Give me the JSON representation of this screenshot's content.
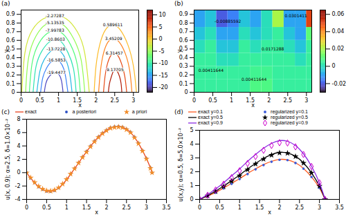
{
  "chart_data": [
    {
      "panel": "(a)",
      "type": "contour",
      "x_label": "x",
      "y_label": "y",
      "xlim": [
        0,
        3.14159
      ],
      "xticks": [
        0,
        0.5,
        1,
        1.5,
        2,
        2.5,
        3
      ],
      "ylim": [
        0,
        0.95
      ],
      "yticks": [
        0,
        0.1,
        0.2,
        0.3,
        0.4,
        0.5,
        0.6,
        0.7,
        0.8,
        0.9
      ],
      "colorbar_range": [
        -22,
        12
      ],
      "colorbar_ticks": [
        -20,
        -15,
        -10,
        -5,
        0,
        5,
        10
      ],
      "data_labels": true,
      "contours": [
        {
          "level": -2.27287,
          "x": [
            0.02,
            0.1,
            0.3,
            0.6,
            0.9,
            1.2,
            1.5,
            1.7,
            1.82
          ],
          "y": [
            0,
            0.45,
            0.72,
            0.85,
            0.88,
            0.85,
            0.7,
            0.45,
            0
          ]
        },
        {
          "level": -5.13535,
          "x": [
            0.12,
            0.2,
            0.4,
            0.65,
            0.9,
            1.15,
            1.4,
            1.6,
            1.7
          ],
          "y": [
            0,
            0.4,
            0.65,
            0.78,
            0.8,
            0.77,
            0.62,
            0.38,
            0
          ]
        },
        {
          "level": -7.99783,
          "x": [
            0.22,
            0.3,
            0.48,
            0.7,
            0.9,
            1.1,
            1.32,
            1.5,
            1.58
          ],
          "y": [
            0,
            0.35,
            0.57,
            0.68,
            0.71,
            0.68,
            0.55,
            0.32,
            0
          ]
        },
        {
          "level": -10.8603,
          "x": [
            0.32,
            0.4,
            0.56,
            0.75,
            0.92,
            1.08,
            1.25,
            1.4,
            1.47
          ],
          "y": [
            0,
            0.3,
            0.48,
            0.58,
            0.61,
            0.58,
            0.46,
            0.27,
            0
          ]
        },
        {
          "level": -13.7228,
          "x": [
            0.42,
            0.5,
            0.62,
            0.78,
            0.93,
            1.06,
            1.2,
            1.3,
            1.36
          ],
          "y": [
            0,
            0.24,
            0.38,
            0.47,
            0.5,
            0.47,
            0.37,
            0.21,
            0
          ]
        },
        {
          "level": -16.5853,
          "x": [
            0.52,
            0.58,
            0.68,
            0.8,
            0.94,
            1.04,
            1.14,
            1.2,
            1.25
          ],
          "y": [
            0,
            0.17,
            0.28,
            0.35,
            0.37,
            0.35,
            0.27,
            0.15,
            0
          ]
        },
        {
          "level": -19.4477,
          "x": [
            0.62,
            0.66,
            0.73,
            0.84,
            0.94,
            1.02,
            1.08,
            1.12
          ],
          "y": [
            0,
            0.1,
            0.17,
            0.22,
            0.23,
            0.2,
            0.13,
            0
          ]
        },
        {
          "level": 0.589611,
          "x": [
            1.95,
            2.0,
            2.1,
            2.25,
            2.45,
            2.65,
            2.85,
            3.0,
            3.08
          ],
          "y": [
            0,
            0.3,
            0.55,
            0.72,
            0.78,
            0.72,
            0.55,
            0.3,
            0
          ]
        },
        {
          "level": 3.45209,
          "x": [
            2.07,
            2.12,
            2.2,
            2.32,
            2.47,
            2.62,
            2.78,
            2.9,
            2.96
          ],
          "y": [
            0,
            0.25,
            0.45,
            0.58,
            0.62,
            0.58,
            0.45,
            0.25,
            0
          ]
        },
        {
          "level": 6.31457,
          "x": [
            2.2,
            2.24,
            2.3,
            2.39,
            2.49,
            2.59,
            2.69,
            2.77,
            2.82
          ],
          "y": [
            0,
            0.18,
            0.32,
            0.42,
            0.45,
            0.42,
            0.32,
            0.18,
            0
          ]
        },
        {
          "level": 9.17705,
          "x": [
            2.33,
            2.36,
            2.41,
            2.46,
            2.51,
            2.57,
            2.63,
            2.67,
            2.69
          ],
          "y": [
            0,
            0.1,
            0.18,
            0.24,
            0.26,
            0.24,
            0.18,
            0.1,
            0
          ]
        }
      ]
    },
    {
      "panel": "(b)",
      "type": "heatmap",
      "x_label": "x",
      "y_label": "y",
      "xlim": [
        0,
        3.14159
      ],
      "xticks": [
        0,
        0.5,
        1,
        1.5,
        2,
        2.5,
        3
      ],
      "ylim": [
        0,
        0.95
      ],
      "yticks": [
        0,
        0.1,
        0.2,
        0.3,
        0.4,
        0.5,
        0.6,
        0.7,
        0.8,
        0.9
      ],
      "colorbar_range": [
        -0.03,
        0.065
      ],
      "colorbar_ticks": [
        -0.02,
        0,
        0.02,
        0.04,
        0.06
      ],
      "x_edges": [
        0,
        0.3,
        0.6,
        0.9,
        1.2,
        1.5,
        1.8,
        2.1,
        2.4,
        2.7,
        3.0,
        3.14159
      ],
      "y_edges": [
        0,
        0.15,
        0.3,
        0.45,
        0.6,
        0.75,
        0.95
      ],
      "cells": [
        [
          0.004,
          0.004,
          0.004,
          0.004,
          0.004,
          0.008,
          0.008,
          0.004,
          0.004,
          0.004,
          0.004
        ],
        [
          0.004,
          0.004,
          0.004,
          0.004,
          0.004,
          0.006,
          0.006,
          0.004,
          0.004,
          0.004,
          0.004
        ],
        [
          0.004,
          0.004,
          0.0,
          0.0,
          0.004,
          0.004,
          0.004,
          0.004,
          0.004,
          0.0,
          0.004
        ],
        [
          0.0,
          0.004,
          -0.005,
          -0.005,
          0.004,
          0.0,
          0.004,
          0.004,
          0.0,
          -0.005,
          0.004
        ],
        [
          -0.005,
          0.0,
          -0.01,
          -0.01,
          0.0,
          -0.005,
          0.0,
          0.004,
          -0.005,
          -0.01,
          0.01
        ],
        [
          -0.01,
          -0.005,
          -0.02,
          -0.015,
          -0.005,
          -0.01,
          0.0,
          0.02,
          -0.01,
          -0.01,
          0.05
        ]
      ],
      "annotations": [
        {
          "x": 0.45,
          "y": 0.25,
          "text": "0.00411644"
        },
        {
          "x": 1.6,
          "y": 0.15,
          "text": "0.00411644"
        },
        {
          "x": 0.9,
          "y": 0.82,
          "text": "-0.00885592"
        },
        {
          "x": 2.1,
          "y": 0.5,
          "text": "0.0171288"
        },
        {
          "x": 2.72,
          "y": 0.88,
          "text": "0.0301411"
        }
      ]
    },
    {
      "panel": "(c)",
      "type": "line",
      "x_label": "x",
      "y_label": "u(x, 0.9); α=2.5, δ=1.0×10⁻²",
      "xlim": [
        0,
        3.5
      ],
      "xticks": [
        0,
        0.5,
        1,
        1.5,
        2,
        2.5,
        3,
        3.5
      ],
      "ylim": [
        -4,
        8
      ],
      "yticks": [
        -4,
        -2,
        0,
        2,
        4,
        6,
        8
      ],
      "legend": "top",
      "x": [
        0,
        0.1,
        0.2,
        0.3,
        0.4,
        0.5,
        0.6,
        0.7,
        0.8,
        0.9,
        1.0,
        1.1,
        1.2,
        1.3,
        1.4,
        1.5,
        1.6,
        1.7,
        1.8,
        1.9,
        2.0,
        2.1,
        2.2,
        2.3,
        2.4,
        2.5,
        2.6,
        2.7,
        2.8,
        2.9,
        3.0,
        3.1,
        3.14
      ],
      "series": [
        {
          "name": "exact",
          "type": "line",
          "color": "#e8401c",
          "values": [
            0,
            -0.8,
            -1.5,
            -2.1,
            -2.5,
            -2.75,
            -2.8,
            -2.65,
            -2.3,
            -1.75,
            -1.05,
            -0.25,
            0.6,
            1.45,
            2.3,
            3.15,
            3.95,
            4.7,
            5.35,
            5.9,
            6.35,
            6.7,
            6.85,
            6.9,
            6.8,
            6.5,
            6.05,
            5.3,
            4.4,
            3.3,
            2.1,
            0.7,
            0
          ]
        },
        {
          "name": "a posteriori",
          "type": "scatter",
          "marker": "circle",
          "color": "#2b4fc4",
          "values": [
            0,
            -0.85,
            -1.55,
            -2.15,
            -2.55,
            -2.8,
            -2.85,
            -2.7,
            -2.3,
            -1.7,
            -1.0,
            -0.2,
            0.65,
            1.5,
            2.35,
            3.2,
            4.0,
            4.75,
            5.4,
            5.95,
            6.4,
            6.75,
            6.9,
            6.95,
            6.85,
            6.55,
            6.1,
            5.35,
            4.45,
            3.35,
            2.15,
            0.75,
            0
          ]
        },
        {
          "name": "a priori",
          "type": "scatter",
          "marker": "star",
          "color": "#f28c28",
          "values": [
            0,
            -0.75,
            -1.45,
            -2.05,
            -2.45,
            -2.7,
            -2.75,
            -2.6,
            -2.25,
            -1.7,
            -1.0,
            -0.2,
            0.6,
            1.45,
            2.3,
            3.1,
            3.9,
            4.65,
            5.3,
            5.85,
            6.3,
            6.65,
            6.8,
            6.85,
            6.75,
            6.45,
            6.0,
            5.25,
            4.35,
            3.25,
            2.05,
            0.65,
            0
          ]
        }
      ]
    },
    {
      "panel": "(d)",
      "type": "line",
      "x_label": "x",
      "y_label": "u(x,y); α=0.5, δ=5.0×10⁻²",
      "xlim": [
        0,
        3.5
      ],
      "xticks": [
        0,
        0.5,
        1,
        1.5,
        2,
        2.5,
        3,
        3.5
      ],
      "ylim": [
        0,
        5
      ],
      "yticks": [
        0,
        1,
        2,
        3,
        4,
        5
      ],
      "legend": "top",
      "x": [
        0,
        0.2,
        0.4,
        0.6,
        0.8,
        1.0,
        1.2,
        1.4,
        1.6,
        1.8,
        2.0,
        2.2,
        2.4,
        2.6,
        2.8,
        3.0,
        3.14
      ],
      "series": [
        {
          "name": "exact y=0.1",
          "type": "line",
          "color": "#ff5a1f",
          "values": [
            0,
            0.24,
            0.51,
            0.82,
            1.16,
            1.5,
            1.87,
            2.21,
            2.52,
            2.75,
            2.89,
            2.86,
            2.65,
            2.24,
            1.63,
            0.82,
            0
          ]
        },
        {
          "name": "regularized y=0.1",
          "type": "scatter",
          "marker": "circle",
          "color": "#3b5bdb",
          "values": [
            0,
            0.22,
            0.48,
            0.79,
            1.12,
            1.47,
            1.83,
            2.17,
            2.48,
            2.72,
            2.86,
            2.84,
            2.63,
            2.22,
            1.62,
            0.83,
            0
          ]
        },
        {
          "name": "exact y=0.5",
          "type": "line",
          "color": "#000000",
          "values": [
            0,
            0.28,
            0.6,
            0.96,
            1.36,
            1.76,
            2.2,
            2.6,
            2.96,
            3.24,
            3.4,
            3.36,
            3.12,
            2.64,
            1.92,
            0.96,
            0
          ]
        },
        {
          "name": "regularized y=0.5",
          "type": "scatter",
          "marker": "star",
          "color": "#000000",
          "values": [
            0,
            0.27,
            0.58,
            0.93,
            1.32,
            1.72,
            2.15,
            2.56,
            2.92,
            3.2,
            3.37,
            3.34,
            3.1,
            2.63,
            1.92,
            0.97,
            0
          ]
        },
        {
          "name": "exact y=0.9",
          "type": "line",
          "color": "#8a2be2",
          "values": [
            0,
            0.35,
            0.75,
            1.2,
            1.7,
            2.2,
            2.75,
            3.25,
            3.7,
            4.05,
            4.25,
            4.2,
            3.9,
            3.3,
            2.4,
            1.2,
            0
          ]
        },
        {
          "name": "regularized y=0.9",
          "type": "scatter",
          "marker": "diamond",
          "color": "#cc00cc",
          "values": [
            0,
            0.3,
            0.68,
            1.1,
            1.58,
            2.07,
            2.6,
            3.1,
            3.55,
            3.9,
            4.1,
            4.08,
            3.8,
            3.25,
            2.38,
            1.2,
            0
          ]
        }
      ]
    }
  ]
}
